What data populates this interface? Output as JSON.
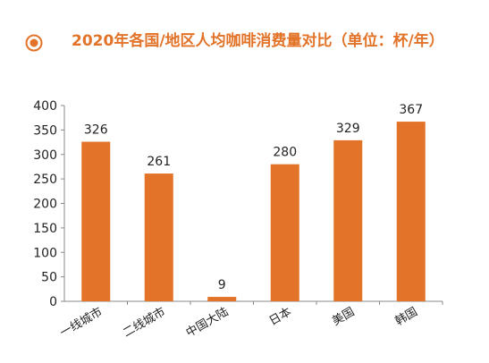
{
  "header": {
    "icon": "target-bullet-icon",
    "title": "2020年各国/地区人均咖啡消费量对比（单位：杯/年）"
  },
  "colors": {
    "accent": "#e27328",
    "bar": "#e27328",
    "axis": "#8a8a8a",
    "text": "#222222"
  },
  "chart_data": {
    "type": "bar",
    "title": "2020年各国/地区人均咖啡消费量对比（单位：杯/年）",
    "categories": [
      "一线城市",
      "二线城市",
      "中国大陆",
      "日本",
      "美国",
      "韩国"
    ],
    "values": [
      326,
      261,
      9,
      280,
      329,
      367
    ],
    "xlabel": "",
    "ylabel": "",
    "ylim": [
      0,
      400
    ],
    "yticks": [
      0,
      50,
      100,
      150,
      200,
      250,
      300,
      350,
      400
    ],
    "grid": false,
    "legend": "none",
    "data_labels": true
  }
}
